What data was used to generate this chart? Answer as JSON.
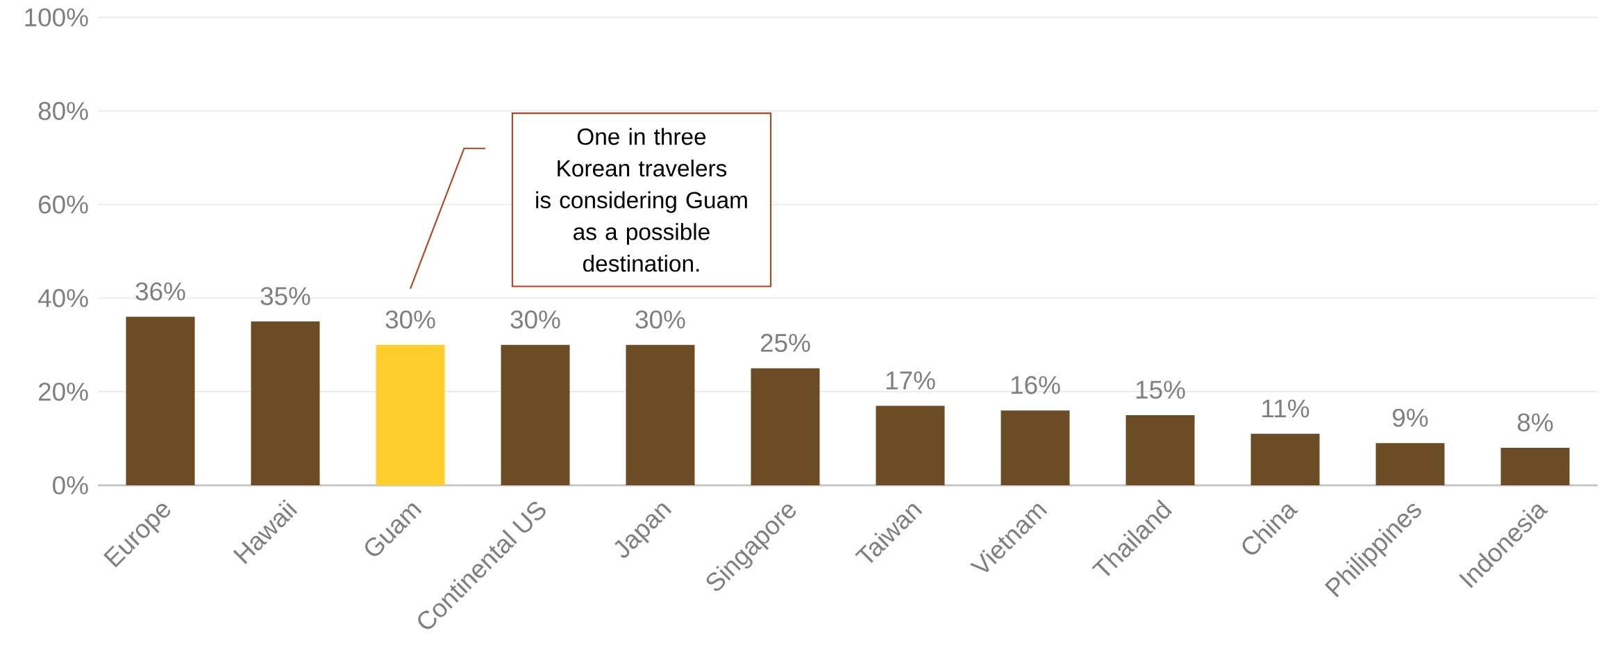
{
  "chart_data": {
    "type": "bar",
    "categories": [
      "Europe",
      "Hawaii",
      "Guam",
      "Continental US",
      "Japan",
      "Singapore",
      "Taiwan",
      "Vietnam",
      "Thailand",
      "China",
      "Philippines",
      "Indonesia"
    ],
    "values": [
      36,
      35,
      30,
      30,
      30,
      25,
      17,
      16,
      15,
      11,
      9,
      8
    ],
    "value_labels": [
      "36%",
      "35%",
      "30%",
      "30%",
      "30%",
      "25%",
      "17%",
      "16%",
      "15%",
      "11%",
      "9%",
      "8%"
    ],
    "colors": [
      "#6b4c24",
      "#6b4c24",
      "#ffcd2c",
      "#6b4c24",
      "#6b4c24",
      "#6b4c24",
      "#6b4c24",
      "#6b4c24",
      "#6b4c24",
      "#6b4c24",
      "#6b4c24",
      "#6b4c24"
    ],
    "ylim": [
      0,
      100
    ],
    "yticks": [
      {
        "value": 0,
        "label": "0%"
      },
      {
        "value": 20,
        "label": "20%"
      },
      {
        "value": 40,
        "label": "40%"
      },
      {
        "value": 60,
        "label": "60%"
      },
      {
        "value": 80,
        "label": "80%"
      },
      {
        "value": 100,
        "label": "100%"
      }
    ],
    "grid": "y",
    "annotations": [
      "One in three Korean travelers is considering Guam as a possible destination."
    ]
  }
}
